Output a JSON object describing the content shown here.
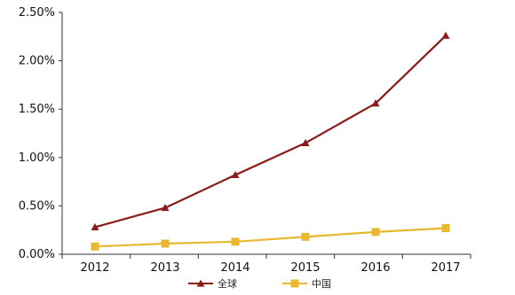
{
  "chart_data": {
    "type": "line",
    "categories": [
      "2012",
      "2013",
      "2014",
      "2015",
      "2016",
      "2017"
    ],
    "series": [
      {
        "name": "全球",
        "values": [
          0.28,
          0.48,
          0.82,
          1.15,
          1.56,
          2.26
        ],
        "color": "#8b1a1a",
        "marker": "triangle"
      },
      {
        "name": "中国",
        "values": [
          0.08,
          0.11,
          0.13,
          0.18,
          0.23,
          0.27
        ],
        "color": "#e8b830",
        "marker": "square"
      }
    ],
    "ylim": [
      0,
      2.5
    ],
    "ytick_labels": [
      "0.00%",
      "0.50%",
      "1.00%",
      "1.50%",
      "2.00%",
      "2.50%"
    ],
    "title": "",
    "xlabel": "",
    "ylabel": "",
    "grid": false,
    "legend_position": "bottom"
  }
}
